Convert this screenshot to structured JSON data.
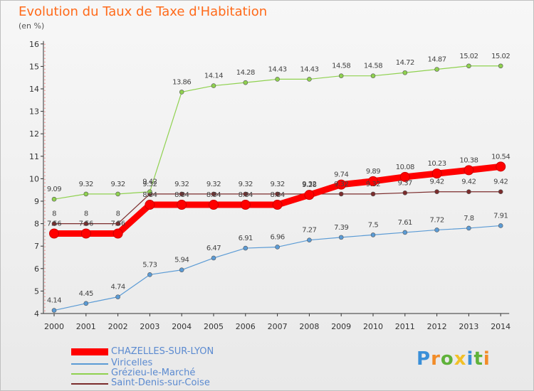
{
  "chart_data": {
    "type": "line",
    "title": "Evolution du Taux de Taxe d'Habitation",
    "subtitle": "(en %)",
    "xlabel": "",
    "ylabel": "",
    "ylim": [
      4,
      16
    ],
    "yticks": [
      "4",
      "5",
      "6",
      "7",
      "8",
      "9",
      "10",
      "11",
      "12",
      "13",
      "14",
      "15",
      "16"
    ],
    "x": [
      "2000",
      "2001",
      "2002",
      "2003",
      "2004",
      "2005",
      "2006",
      "2007",
      "2008",
      "2009",
      "2010",
      "2011",
      "2012",
      "2013",
      "2014"
    ],
    "grid": false,
    "legend_position": "bottom-left",
    "series": [
      {
        "name": "CHAZELLES-SUR-LYON",
        "color": "#ff0000",
        "labels": [
          "7.56",
          "7.56",
          "7.56",
          "8.84",
          "8.84",
          "8.84",
          "8.84",
          "8.84",
          "9.28",
          "9.74",
          "9.89",
          "10.08",
          "10.23",
          "10.38",
          "10.54"
        ],
        "values": [
          7.56,
          7.56,
          7.56,
          8.84,
          8.84,
          8.84,
          8.84,
          8.84,
          9.28,
          9.74,
          9.89,
          10.08,
          10.23,
          10.38,
          10.54
        ]
      },
      {
        "name": "Viricelles",
        "color": "#5b9bd5",
        "labels": [
          "4.14",
          "4.45",
          "4.74",
          "5.73",
          "5.94",
          "6.47",
          "6.91",
          "6.96",
          "7.27",
          "7.39",
          "7.5",
          "7.61",
          "7.72",
          "7.8",
          "7.91"
        ],
        "values": [
          4.14,
          4.45,
          4.74,
          5.73,
          5.94,
          6.47,
          6.91,
          6.96,
          7.27,
          7.39,
          7.5,
          7.61,
          7.72,
          7.8,
          7.91
        ]
      },
      {
        "name": "Grézieu-le-Marché",
        "color": "#8fd14f",
        "labels": [
          "9.09",
          "9.32",
          "9.32",
          "9.42",
          "13.86",
          "14.14",
          "14.28",
          "14.43",
          "14.43",
          "14.58",
          "14.58",
          "14.72",
          "14.87",
          "15.02",
          "15.02"
        ],
        "values": [
          9.09,
          9.32,
          9.32,
          9.42,
          13.86,
          14.14,
          14.28,
          14.43,
          14.43,
          14.58,
          14.58,
          14.72,
          14.87,
          15.02,
          15.02
        ]
      },
      {
        "name": "Saint-Denis-sur-Coise",
        "color": "#7b2c2c",
        "labels": [
          "8",
          "8",
          "8",
          "9.32",
          "9.32",
          "9.32",
          "9.32",
          "9.32",
          "9.32",
          "9.32",
          "9.32",
          "9.37",
          "9.42",
          "9.42",
          "9.42"
        ],
        "values": [
          8,
          8,
          8,
          9.32,
          9.32,
          9.32,
          9.32,
          9.32,
          9.32,
          9.32,
          9.32,
          9.37,
          9.42,
          9.42,
          9.42
        ]
      }
    ]
  },
  "logo": {
    "text": "Proxiti"
  }
}
